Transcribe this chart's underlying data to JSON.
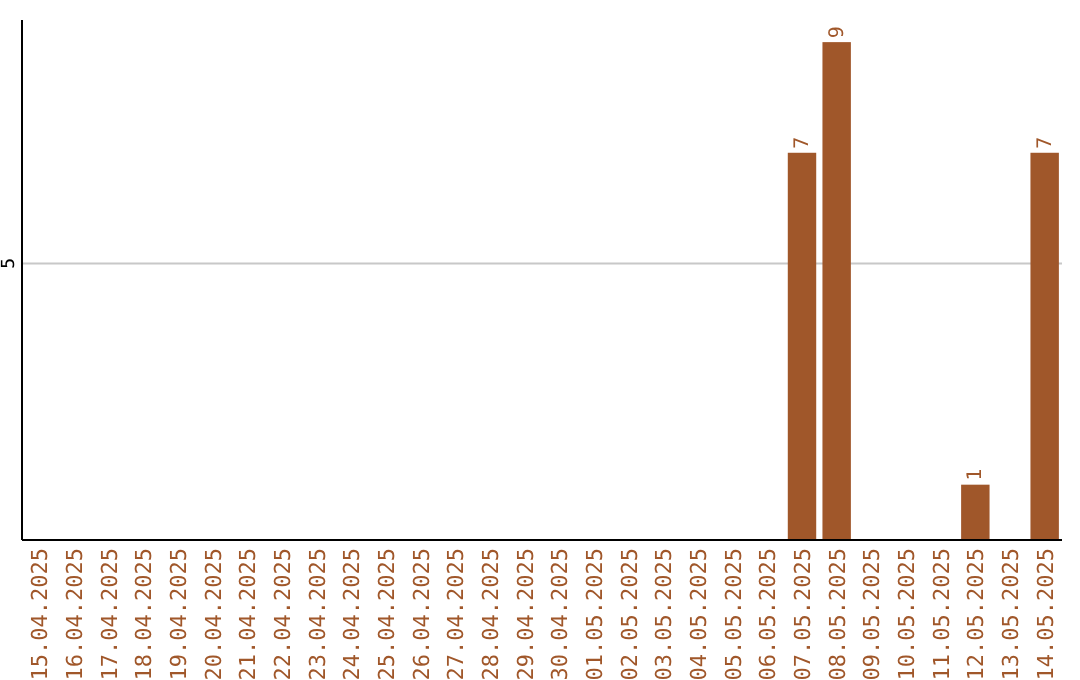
{
  "chart_data": {
    "type": "bar",
    "categories": [
      "15.04.2025",
      "16.04.2025",
      "17.04.2025",
      "18.04.2025",
      "19.04.2025",
      "20.04.2025",
      "21.04.2025",
      "22.04.2025",
      "23.04.2025",
      "24.04.2025",
      "25.04.2025",
      "26.04.2025",
      "27.04.2025",
      "28.04.2025",
      "29.04.2025",
      "30.04.2025",
      "01.05.2025",
      "02.05.2025",
      "03.05.2025",
      "04.05.2025",
      "05.05.2025",
      "06.05.2025",
      "07.05.2025",
      "08.05.2025",
      "09.05.2025",
      "10.05.2025",
      "11.05.2025",
      "12.05.2025",
      "13.05.2025",
      "14.05.2025"
    ],
    "values": [
      null,
      null,
      null,
      null,
      null,
      null,
      null,
      null,
      null,
      null,
      null,
      null,
      null,
      null,
      null,
      null,
      null,
      null,
      null,
      null,
      null,
      null,
      7,
      9,
      null,
      null,
      null,
      1,
      null,
      7
    ],
    "value_labels": [
      null,
      null,
      null,
      null,
      null,
      null,
      null,
      null,
      null,
      null,
      null,
      null,
      null,
      null,
      null,
      null,
      null,
      null,
      null,
      null,
      null,
      null,
      "7",
      "9",
      null,
      null,
      null,
      "1",
      null,
      "7"
    ],
    "color": "#a0572a",
    "ylim": [
      0,
      9.4
    ],
    "ref_lines": [
      {
        "axis": "y",
        "value": 5,
        "label": "5",
        "color": "#c8c8c8"
      }
    ]
  }
}
